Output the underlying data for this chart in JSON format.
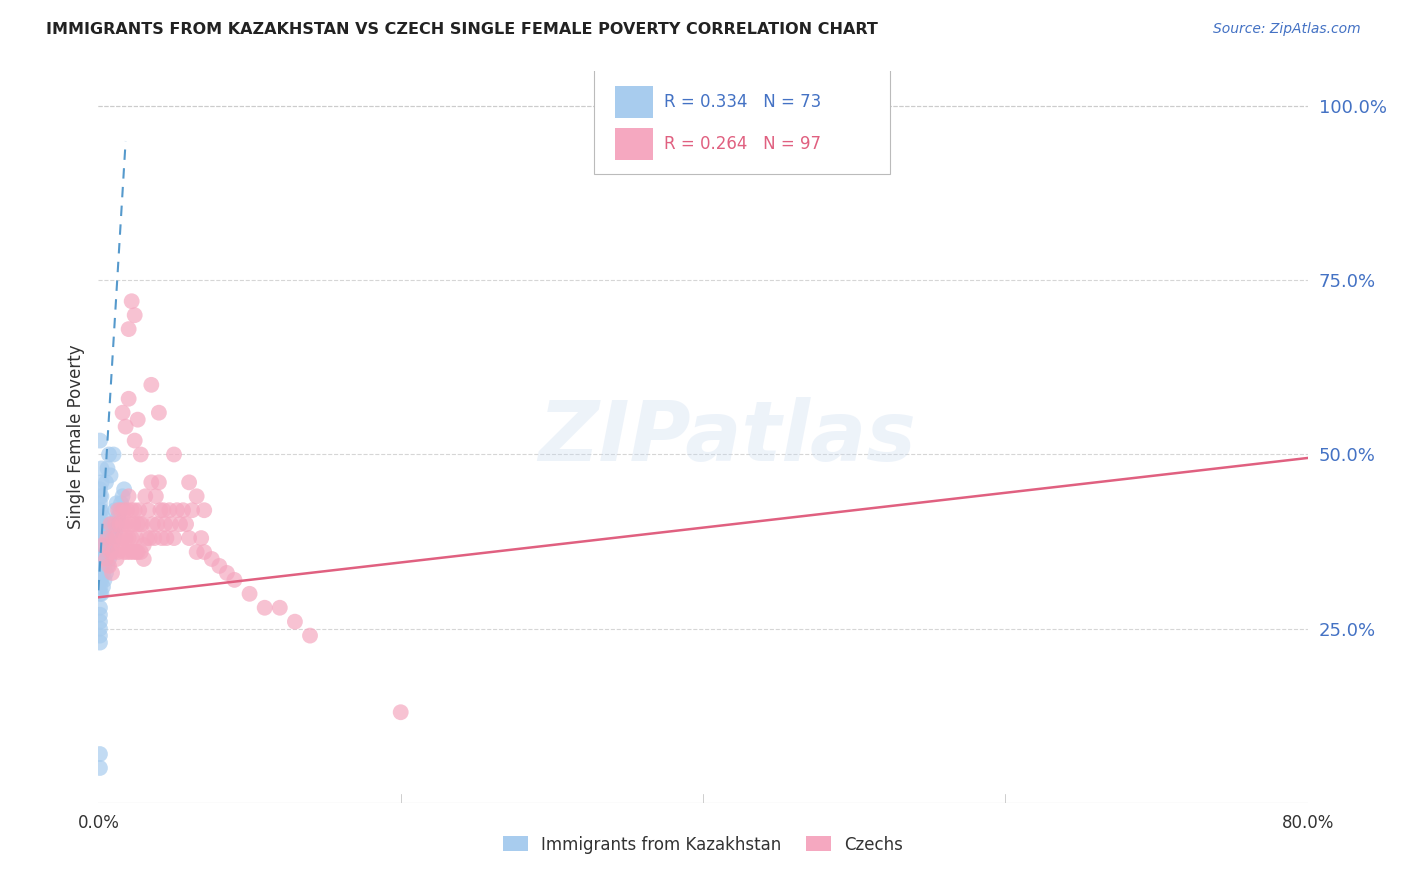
{
  "title": "IMMIGRANTS FROM KAZAKHSTAN VS CZECH SINGLE FEMALE POVERTY CORRELATION CHART",
  "source": "Source: ZipAtlas.com",
  "ylabel": "Single Female Poverty",
  "xlim": [
    0.0,
    0.8
  ],
  "ylim": [
    0.0,
    1.05
  ],
  "legend_label1": "Immigrants from Kazakhstan",
  "legend_label2": "Czechs",
  "R1": 0.334,
  "N1": 73,
  "R2": 0.264,
  "N2": 97,
  "color_blue": "#A8CCEE",
  "color_pink": "#F5A8C0",
  "trend_color_blue": "#5599CC",
  "trend_color_pink": "#E06080",
  "background_color": "#FFFFFF",
  "grid_color": "#CCCCCC",
  "blue_x": [
    0.001,
    0.001,
    0.001,
    0.001,
    0.001,
    0.001,
    0.001,
    0.001,
    0.001,
    0.001,
    0.001,
    0.001,
    0.001,
    0.001,
    0.001,
    0.001,
    0.001,
    0.001,
    0.001,
    0.001,
    0.001,
    0.001,
    0.002,
    0.002,
    0.002,
    0.002,
    0.002,
    0.002,
    0.002,
    0.002,
    0.002,
    0.002,
    0.003,
    0.003,
    0.003,
    0.003,
    0.003,
    0.003,
    0.004,
    0.004,
    0.004,
    0.004,
    0.005,
    0.005,
    0.005,
    0.005,
    0.006,
    0.006,
    0.006,
    0.007,
    0.007,
    0.007,
    0.008,
    0.008,
    0.008,
    0.008,
    0.009,
    0.009,
    0.01,
    0.01,
    0.01,
    0.011,
    0.011,
    0.012,
    0.012,
    0.013,
    0.014,
    0.015,
    0.016,
    0.017,
    0.001,
    0.001,
    0.001
  ],
  "blue_y": [
    0.3,
    0.31,
    0.32,
    0.33,
    0.34,
    0.35,
    0.36,
    0.37,
    0.38,
    0.39,
    0.4,
    0.41,
    0.42,
    0.43,
    0.44,
    0.45,
    0.28,
    0.27,
    0.26,
    0.25,
    0.24,
    0.23,
    0.3,
    0.32,
    0.34,
    0.36,
    0.38,
    0.4,
    0.42,
    0.44,
    0.46,
    0.48,
    0.31,
    0.33,
    0.35,
    0.37,
    0.39,
    0.41,
    0.32,
    0.34,
    0.36,
    0.38,
    0.33,
    0.35,
    0.37,
    0.46,
    0.34,
    0.36,
    0.48,
    0.35,
    0.37,
    0.5,
    0.36,
    0.38,
    0.4,
    0.47,
    0.37,
    0.39,
    0.38,
    0.4,
    0.5,
    0.39,
    0.42,
    0.4,
    0.43,
    0.41,
    0.42,
    0.43,
    0.44,
    0.45,
    0.05,
    0.07,
    0.52
  ],
  "pink_x": [
    0.003,
    0.005,
    0.006,
    0.007,
    0.008,
    0.008,
    0.009,
    0.01,
    0.01,
    0.011,
    0.012,
    0.012,
    0.013,
    0.013,
    0.014,
    0.015,
    0.015,
    0.016,
    0.016,
    0.017,
    0.017,
    0.018,
    0.018,
    0.019,
    0.019,
    0.02,
    0.02,
    0.021,
    0.021,
    0.022,
    0.022,
    0.023,
    0.023,
    0.024,
    0.025,
    0.025,
    0.026,
    0.026,
    0.027,
    0.028,
    0.028,
    0.029,
    0.03,
    0.03,
    0.031,
    0.032,
    0.033,
    0.034,
    0.035,
    0.036,
    0.037,
    0.038,
    0.039,
    0.04,
    0.041,
    0.042,
    0.043,
    0.044,
    0.045,
    0.047,
    0.048,
    0.05,
    0.052,
    0.054,
    0.056,
    0.058,
    0.06,
    0.062,
    0.065,
    0.068,
    0.07,
    0.075,
    0.08,
    0.085,
    0.09,
    0.1,
    0.11,
    0.12,
    0.13,
    0.14,
    0.016,
    0.018,
    0.02,
    0.024,
    0.026,
    0.028,
    0.02,
    0.022,
    0.024,
    0.035,
    0.04,
    0.05,
    0.06,
    0.065,
    0.07,
    0.2
  ],
  "pink_y": [
    0.37,
    0.35,
    0.38,
    0.34,
    0.36,
    0.4,
    0.33,
    0.38,
    0.36,
    0.4,
    0.35,
    0.38,
    0.42,
    0.36,
    0.4,
    0.37,
    0.42,
    0.38,
    0.4,
    0.42,
    0.36,
    0.4,
    0.38,
    0.42,
    0.36,
    0.44,
    0.38,
    0.4,
    0.36,
    0.42,
    0.38,
    0.4,
    0.36,
    0.42,
    0.38,
    0.36,
    0.4,
    0.36,
    0.42,
    0.4,
    0.36,
    0.4,
    0.37,
    0.35,
    0.44,
    0.38,
    0.42,
    0.38,
    0.46,
    0.4,
    0.38,
    0.44,
    0.4,
    0.46,
    0.42,
    0.38,
    0.42,
    0.4,
    0.38,
    0.42,
    0.4,
    0.38,
    0.42,
    0.4,
    0.42,
    0.4,
    0.38,
    0.42,
    0.36,
    0.38,
    0.36,
    0.35,
    0.34,
    0.33,
    0.32,
    0.3,
    0.28,
    0.28,
    0.26,
    0.24,
    0.56,
    0.54,
    0.58,
    0.52,
    0.55,
    0.5,
    0.68,
    0.72,
    0.7,
    0.6,
    0.56,
    0.5,
    0.46,
    0.44,
    0.42,
    0.13
  ],
  "blue_trendline_x": [
    0.0,
    0.018
  ],
  "blue_trendline_y": [
    0.305,
    0.95
  ],
  "pink_trendline_x": [
    0.0,
    0.8
  ],
  "pink_trendline_y": [
    0.295,
    0.495
  ],
  "watermark": "ZIPatlas",
  "yticks": [
    0.25,
    0.5,
    0.75,
    1.0
  ],
  "ytick_labels": [
    "25.0%",
    "50.0%",
    "75.0%",
    "100.0%"
  ],
  "xtick_positions": [
    0.0,
    0.8
  ],
  "xtick_labels": [
    "0.0%",
    "80.0%"
  ]
}
